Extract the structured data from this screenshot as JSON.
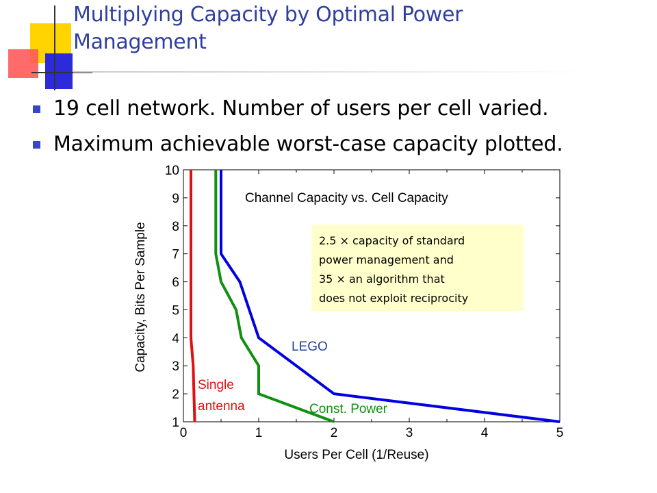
{
  "slide": {
    "title_line1": "Multiplying Capacity by Optimal Power",
    "title_line2": "Management",
    "bullets": [
      "19 cell network. Number of users per cell varied.",
      "Maximum achievable worst-case capacity plotted."
    ],
    "logo_colors": {
      "yellow": "#ffd400",
      "red": "#ff4b4b",
      "blue": "#2b2bdc"
    }
  },
  "chart_data": {
    "type": "line",
    "title": "Channel Capacity vs. Cell Capacity",
    "xlabel": "Users Per Cell (1/Reuse)",
    "ylabel": "Capacity, Bits Per Sample",
    "xlim": [
      0,
      5
    ],
    "ylim": [
      1,
      10
    ],
    "xticks": [
      "0",
      "1",
      "2",
      "3",
      "4",
      "5"
    ],
    "yticks": [
      "1",
      "2",
      "3",
      "4",
      "5",
      "6",
      "7",
      "8",
      "9",
      "10"
    ],
    "grid": false,
    "series": [
      {
        "name": "LEGO",
        "color": "#0000e0",
        "x": [
          0.5,
          0.5,
          0.75,
          1.0,
          2.0,
          5.0
        ],
        "y": [
          10,
          7.0,
          6.0,
          4.0,
          2.0,
          1.0
        ]
      },
      {
        "name": "Const. Power",
        "color": "#109010",
        "x": [
          0.43,
          0.43,
          0.5,
          0.7,
          0.77,
          1.0,
          1.0,
          2.0
        ],
        "y": [
          10,
          7.0,
          6.0,
          5.0,
          4.0,
          3.0,
          2.0,
          1.0
        ]
      },
      {
        "name": "Single antenna",
        "color": "#e01010",
        "x": [
          0.1,
          0.1,
          0.1,
          0.13,
          0.15
        ],
        "y": [
          10,
          6.0,
          4.0,
          3.0,
          1.0
        ]
      }
    ],
    "series_labels": {
      "lego": "LEGO",
      "const_power": "Const. Power",
      "single_line1": "Single",
      "single_line2": "antenna"
    },
    "annotation": {
      "line1": "2.5 × capacity of standard",
      "line2": "power management and",
      "line3": "35 × an algorithm that",
      "line4": "does not exploit reciprocity"
    }
  }
}
